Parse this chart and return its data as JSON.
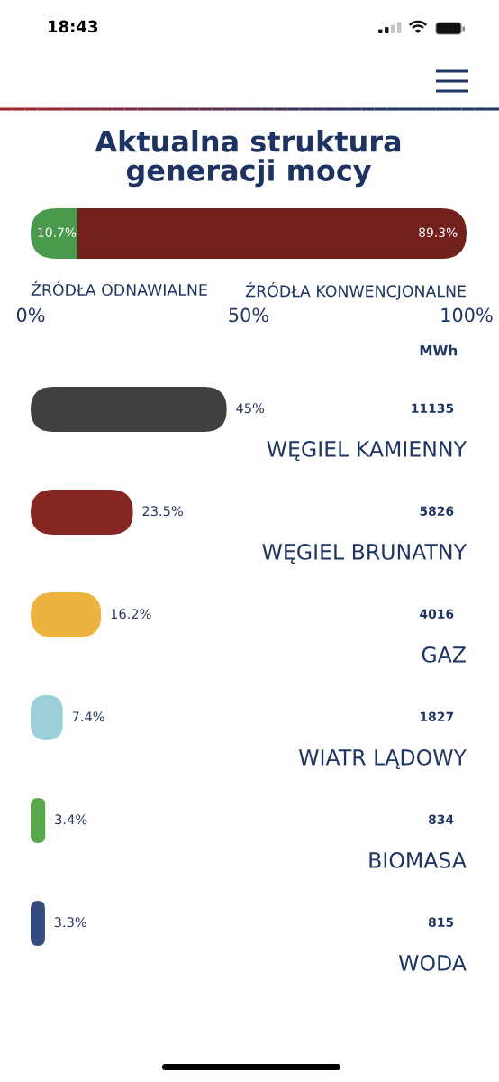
{
  "chart_data": [
    {
      "type": "bar",
      "title": "Aktualna struktura\ngeneracji mocy",
      "orientation": "horizontal",
      "stacked": true,
      "categories": [
        null
      ],
      "series": [
        {
          "name": "ŹRÓDŁA ODNAWIALNE",
          "color": "#4a9a4d",
          "values": [
            10.7
          ],
          "value_labels": [
            "10.7%"
          ]
        },
        {
          "name": "ŹRÓDŁA KONWENCJONALNE",
          "color": "#72201b",
          "values": [
            89.3
          ],
          "value_labels": [
            "89.3%"
          ]
        }
      ],
      "xlim": [
        0,
        100
      ],
      "xticks": [
        {
          "value": 0,
          "label": "0%"
        },
        {
          "value": 50,
          "label": "50%"
        },
        {
          "value": 100,
          "label": "100%"
        }
      ],
      "tick_labels": "x",
      "annotations": [
        "18:43"
      ]
    },
    {
      "type": "bar",
      "orientation": "horizontal",
      "categories": [
        "WĘGIEL KAMIENNY",
        "WĘGIEL BRUNATNY",
        "GAZ",
        "WIATR LĄDOWY",
        "BIOMASA",
        "WODA",
        null
      ],
      "values": [
        45,
        23.5,
        16.2,
        7.4,
        3.4,
        3.3,
        null
      ],
      "colors": [
        "#404040",
        "#862622",
        "#edb33f",
        "#9ccfd8",
        "#5aa64b",
        "#344a80",
        "#ecdc97"
      ],
      "value_labels": [
        "45%",
        "23.5%",
        "16.2%",
        "7.4%",
        "3.4%",
        "3.3%",
        null
      ],
      "xlim": [
        0,
        100
      ],
      "tick_labels": false,
      "annotations": [
        "MWh",
        "11135",
        "5826",
        "4016",
        "1827",
        "834",
        "815"
      ]
    }
  ]
}
